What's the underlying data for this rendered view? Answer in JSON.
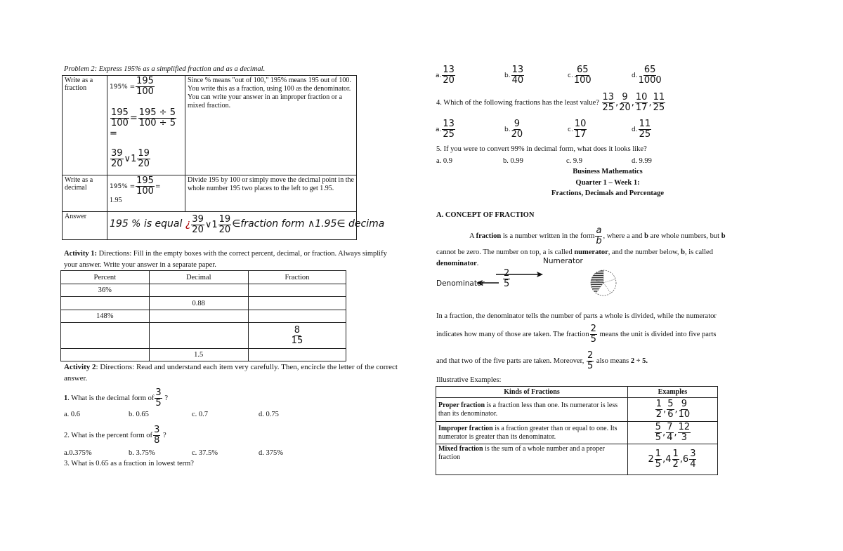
{
  "problem2": {
    "title": "Problem 2: Express 195% as a simplified fraction and as a decimal.",
    "row1_label": "Write as a fraction",
    "row1_eq_prefix": "195% =",
    "f195_100": {
      "n": "195",
      "d": "100"
    },
    "f195_5": {
      "n": "195 ÷ 5",
      "d": "100 ÷ 5"
    },
    "f39_20": {
      "n": "39",
      "d": "20"
    },
    "mixed_19_20": {
      "w": "1",
      "n": "19",
      "d": "20"
    },
    "or_symbol": "∨",
    "eq": "=",
    "row1_explain": "Since % means \"out of 100,\" 195% means 195 out of 100. You write this as a fraction, using 100 as the denominator. You can write your answer in an improper fraction or a mixed fraction.",
    "row2_label": "Write as a decimal",
    "row2_result": "1.95",
    "row2_explain": "Divide 195 by 100 or simply move the decimal point in the whole number 195 two places to the left to get 1.95.",
    "row3_label": "Answer",
    "answer_part1": "195 % is equal ",
    "answer_glyph": "¿",
    "answer_part2": "∈fraction form ∧1.95∈ decima"
  },
  "activity1": {
    "directions_label": "Activity 1:",
    "directions": " Directions: Fill in the empty boxes with the correct percent, decimal, or fraction. Always simplify your answer. Write your answer in a separate paper.",
    "headers": [
      "Percent",
      "Decimal",
      "Fraction"
    ],
    "rows": [
      [
        "36%",
        "",
        ""
      ],
      [
        "",
        "0.88",
        ""
      ],
      [
        "148%",
        "",
        ""
      ],
      [
        "",
        "",
        ""
      ],
      [
        "",
        "1.5",
        ""
      ]
    ],
    "frac_8_15": {
      "n": "8",
      "d": "15"
    }
  },
  "activity2": {
    "directions_label": "Activity 2",
    "directions": ": Directions: Read and understand each item very carefully. Then, encircle the letter of the correct answer.",
    "q1": {
      "num": "1",
      "text": ". What is the decimal form of",
      "frac": {
        "n": "3",
        "d": "5"
      },
      "end": " ?",
      "options": [
        "a. 0.6",
        "b. 0.65",
        "c. 0.7",
        "d. 0.75"
      ]
    },
    "q2": {
      "text": "2. What is the percent form of",
      "frac": {
        "n": "3",
        "d": "8"
      },
      "end": " ?",
      "options": [
        "a.0.375%",
        "b. 3.75%",
        "c. 37.5%",
        "d. 375%"
      ]
    },
    "q3": {
      "text": "3. What is 0.65 as a fraction in lowest term?",
      "options": [
        {
          "l": "a.",
          "n": "13",
          "d": "20"
        },
        {
          "l": "b.",
          "n": "13",
          "d": "40"
        },
        {
          "l": "c.",
          "n": "65",
          "d": "100"
        },
        {
          "l": "d.",
          "n": "65",
          "d": "1000"
        }
      ]
    },
    "q4": {
      "text": "4. Which of the following fractions has the least value?",
      "fracs": [
        {
          "n": "13",
          "d": "25"
        },
        {
          "n": "9",
          "d": "20"
        },
        {
          "n": "10",
          "d": "17"
        },
        {
          "n": "11",
          "d": "25"
        }
      ],
      "options": [
        {
          "l": "a.",
          "n": "13",
          "d": "25"
        },
        {
          "l": "b.",
          "n": "9",
          "d": "20"
        },
        {
          "l": "c.",
          "n": "10",
          "d": "17"
        },
        {
          "l": "d.",
          "n": "11",
          "d": "25"
        }
      ]
    },
    "q5": {
      "text": "5. If you were to convert 99% in decimal form, what does it looks like?",
      "options": [
        "a. 0.9",
        "b. 0.99",
        "c. 9.9",
        "d. 9.99"
      ]
    }
  },
  "lesson": {
    "subject": "Business Mathematics",
    "quarter": "Quarter 1 – Week 1:",
    "topic": "Fractions, Decimals and Percentage",
    "section": "A. CONCEPT OF FRACTION",
    "p1_a": "A ",
    "p1_bold": "fraction",
    "p1_b": " is a number written in the form",
    "f_ab": {
      "n": "a",
      "d": "b"
    },
    "p1_c": ", where a and ",
    "p1_bold2": "b",
    "p1_d": " are whole numbers, but ",
    "p1_bold3": "b",
    "p2_a": "cannot be zero. The number on top, a is called ",
    "p2_bold": "numerator",
    "p2_b": ", and the number below, ",
    "p2_bold2": "b",
    "p2_c": ", is called",
    "p3_bold": "denominator",
    "p3_end": ".",
    "numerator_label": "Numerator",
    "denominator_label": "Denominator",
    "f25": {
      "n": "2",
      "d": "5"
    },
    "pie_shaded_fraction": 0.4,
    "p4": "In a fraction, the denominator tells the number of parts a whole is divided, while the numerator",
    "p5_a": "indicates how many of those are taken. The fraction",
    "p5_b": " means the unit is divided into five parts",
    "p6_a": "and that two of the five parts are taken. Moreover, ",
    "p6_b": " also means ",
    "p6_bold": "2 ÷ 5."
  },
  "examples": {
    "title": "Illustrative Examples:",
    "headers": [
      "Kinds of Fractions",
      "Examples"
    ],
    "rows": [
      {
        "bold": "Proper fraction",
        "text": " is a fraction less than one. Its numerator is less than its denominator.",
        "fracs": [
          {
            "n": "1",
            "d": "2"
          },
          {
            "n": "5",
            "d": "6"
          },
          {
            "n": "9",
            "d": "10"
          }
        ]
      },
      {
        "bold": "Improper fraction",
        "text": " is a fraction greater than or equal to one. Its numerator is greater than its denominator.",
        "fracs": [
          {
            "n": "5",
            "d": "5"
          },
          {
            "n": "7",
            "d": "4"
          },
          {
            "n": "12",
            "d": "3"
          }
        ]
      },
      {
        "bold": "Mixed fraction",
        "text": " is the sum of a whole number and a proper fraction",
        "fracs": [
          {
            "w": "2",
            "n": "1",
            "d": "5"
          },
          {
            "w": "4",
            "n": "1",
            "d": "2"
          },
          {
            "w": "6",
            "n": "3",
            "d": "4"
          }
        ]
      }
    ]
  }
}
